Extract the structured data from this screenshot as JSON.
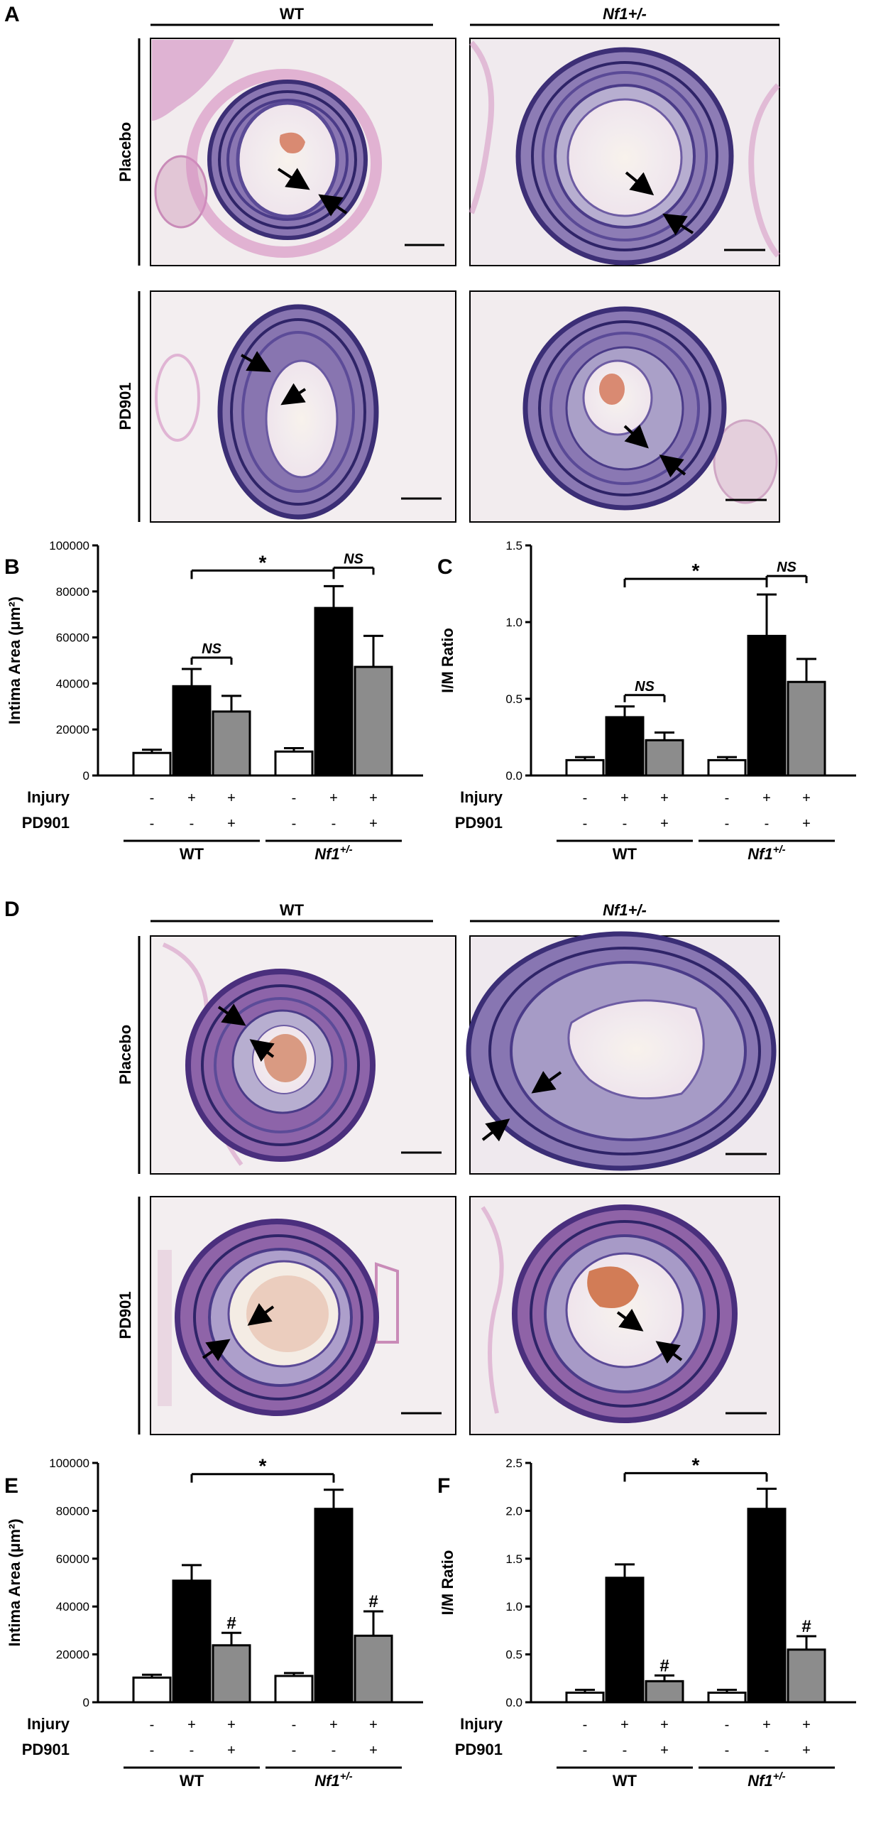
{
  "panels": {
    "A": {
      "label": "A",
      "col_headers": [
        "WT",
        "Nf1+/-"
      ],
      "row_labels": [
        "Placebo",
        "PD901"
      ]
    },
    "D": {
      "label": "D",
      "col_headers": [
        "WT",
        "Nf1+/-"
      ],
      "row_labels": [
        "Placebo",
        "PD901"
      ]
    }
  },
  "chart_data": [
    {
      "panel": "B",
      "type": "bar",
      "ylabel": "Intima Area (μm²)",
      "ylim": [
        0,
        100000
      ],
      "yticks": [
        "0",
        "20000",
        "40000",
        "60000",
        "80000",
        "100000"
      ],
      "groups": [
        "WT",
        "Nf1+/-"
      ],
      "conditions": [
        "Uninjured",
        "Injury",
        "Injury + PD901"
      ],
      "values": [
        [
          9800,
          38800,
          27800
        ],
        [
          10400,
          72800,
          47200
        ]
      ],
      "errors": [
        [
          1400,
          7500,
          6800
        ],
        [
          1500,
          9500,
          13500
        ]
      ],
      "annotations": {
        "star": "*",
        "ns": [
          "NS",
          "NS"
        ]
      },
      "rows": {
        "Injury": [
          "-",
          "+",
          "+",
          "-",
          "+",
          "+"
        ],
        "PD901": [
          "-",
          "-",
          "+",
          "-",
          "-",
          "+"
        ]
      }
    },
    {
      "panel": "C",
      "type": "bar",
      "ylabel": "I/M Ratio",
      "ylim": [
        0,
        1.5
      ],
      "yticks": [
        "0.0",
        "0.5",
        "1.0",
        "1.5"
      ],
      "groups": [
        "WT",
        "Nf1+/-"
      ],
      "conditions": [
        "Uninjured",
        "Injury",
        "Injury + PD901"
      ],
      "values": [
        [
          0.1,
          0.38,
          0.23
        ],
        [
          0.1,
          0.91,
          0.61
        ]
      ],
      "errors": [
        [
          0.02,
          0.07,
          0.05
        ],
        [
          0.02,
          0.27,
          0.15
        ]
      ],
      "annotations": {
        "star": "*",
        "ns": [
          "NS",
          "NS"
        ]
      },
      "rows": {
        "Injury": [
          "-",
          "+",
          "+",
          "-",
          "+",
          "+"
        ],
        "PD901": [
          "-",
          "-",
          "+",
          "-",
          "-",
          "+"
        ]
      }
    },
    {
      "panel": "E",
      "type": "bar",
      "ylabel": "Intima Area (μm²)",
      "ylim": [
        0,
        100000
      ],
      "yticks": [
        "0",
        "20000",
        "40000",
        "60000",
        "80000",
        "100000"
      ],
      "groups": [
        "WT",
        "Nf1+/-"
      ],
      "conditions": [
        "Uninjured",
        "Injury",
        "Injury + PD901"
      ],
      "values": [
        [
          10300,
          50800,
          23800
        ],
        [
          11000,
          80800,
          27800
        ]
      ],
      "errors": [
        [
          1200,
          6500,
          5200
        ],
        [
          1200,
          8000,
          10200
        ]
      ],
      "annotations": {
        "star": "*",
        "hash": [
          "#",
          "#"
        ]
      },
      "rows": {
        "Injury": [
          "-",
          "+",
          "+",
          "-",
          "+",
          "+"
        ],
        "PD901": [
          "-",
          "-",
          "+",
          "-",
          "-",
          "+"
        ]
      }
    },
    {
      "panel": "F",
      "type": "bar",
      "ylabel": "I/M Ratio",
      "ylim": [
        0,
        2.5
      ],
      "yticks": [
        "0.0",
        "0.5",
        "1.0",
        "1.5",
        "2.0",
        "2.5"
      ],
      "groups": [
        "WT",
        "Nf1+/-"
      ],
      "conditions": [
        "Uninjured",
        "Injury",
        "Injury + PD901"
      ],
      "values": [
        [
          0.1,
          1.3,
          0.22
        ],
        [
          0.1,
          2.02,
          0.55
        ]
      ],
      "errors": [
        [
          0.03,
          0.14,
          0.06
        ],
        [
          0.03,
          0.21,
          0.14
        ]
      ],
      "annotations": {
        "star": "*",
        "hash": [
          "#",
          "#"
        ]
      },
      "rows": {
        "Injury": [
          "-",
          "+",
          "+",
          "-",
          "+",
          "+"
        ],
        "PD901": [
          "-",
          "-",
          "+",
          "-",
          "-",
          "+"
        ]
      }
    }
  ],
  "colors": {
    "uninjured": "#ffffff",
    "injury": "#000000",
    "pd901": "#8c8c8c",
    "stain_bg": "#f3eef0",
    "elastin": "#4b3a86",
    "tissue": "#c978b4",
    "blood": "#d98a72"
  }
}
